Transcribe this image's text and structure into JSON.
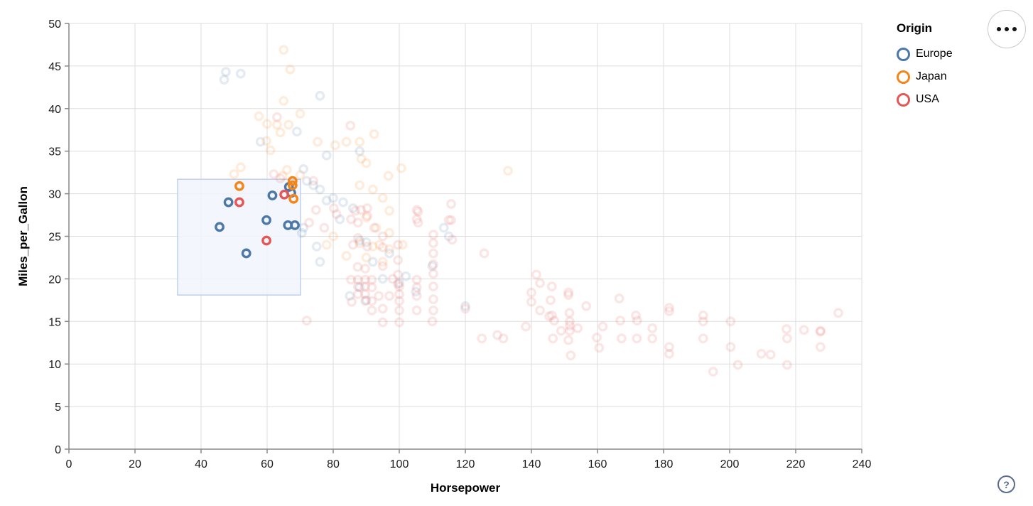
{
  "legend": {
    "title": "Origin",
    "items": [
      {
        "label": "Europe",
        "color": "#4c78a8"
      },
      {
        "label": "Japan",
        "color": "#f58518"
      },
      {
        "label": "USA",
        "color": "#e45756"
      }
    ]
  },
  "menu": {
    "name": "chart actions menu"
  },
  "help": {
    "glyph": "?"
  },
  "chart_data": {
    "type": "scatter",
    "title": "",
    "xlabel": "Horsepower",
    "ylabel": "Miles_per_Gallon",
    "xlim": [
      0,
      240
    ],
    "ylim": [
      0,
      50
    ],
    "xticks": [
      0,
      20,
      40,
      60,
      80,
      100,
      120,
      140,
      160,
      180,
      200,
      220,
      240
    ],
    "yticks": [
      0,
      5,
      10,
      15,
      20,
      25,
      30,
      35,
      40,
      45,
      50
    ],
    "grid": true,
    "legend_position": "top-right",
    "colors": {
      "grid": "#dddddd",
      "axis": "#888888",
      "label": "#1a1a1a",
      "brush_fill": "#f1f5fc",
      "brush_stroke": "#bfd0ec"
    },
    "point_style": {
      "radius": 5.2,
      "stroke_width": 3.4,
      "faded_opacity": 0.15
    },
    "brush": {
      "x": [
        32.9,
        70.1
      ],
      "y": [
        18.1,
        31.7
      ]
    },
    "series": [
      {
        "name": "Europe",
        "color": "#4c78a8",
        "selected": [
          [
            45.6,
            26.1
          ],
          [
            48.3,
            29.0
          ],
          [
            53.7,
            23.0
          ],
          [
            59.8,
            26.9
          ],
          [
            61.6,
            29.8
          ],
          [
            66.6,
            30.8
          ],
          [
            67.3,
            30.1
          ],
          [
            66.3,
            26.3
          ],
          [
            68.4,
            26.3
          ]
        ],
        "points": [
          [
            47.5,
            44.3
          ],
          [
            47,
            43.4
          ],
          [
            52,
            44.1
          ],
          [
            76,
            41.5
          ],
          [
            69,
            37.3
          ],
          [
            58,
            36.1
          ],
          [
            78,
            34.5
          ],
          [
            88,
            35
          ],
          [
            71,
            32.9
          ],
          [
            72,
            31.5
          ],
          [
            74,
            31
          ],
          [
            76,
            30.5
          ],
          [
            78,
            29.2
          ],
          [
            80,
            29.5
          ],
          [
            83,
            29
          ],
          [
            86,
            28.3
          ],
          [
            82,
            27
          ],
          [
            71,
            26
          ],
          [
            70.5,
            25.4
          ],
          [
            75,
            23.8
          ],
          [
            76,
            22
          ],
          [
            113.5,
            26
          ],
          [
            115,
            25
          ],
          [
            88,
            24.5
          ],
          [
            90,
            24.3
          ],
          [
            97,
            23
          ],
          [
            92,
            22
          ],
          [
            102,
            20.3
          ],
          [
            95,
            20
          ],
          [
            100,
            19.5
          ],
          [
            88,
            19
          ],
          [
            110,
            21.5
          ],
          [
            105,
            18.5
          ],
          [
            85,
            18
          ],
          [
            90,
            17.5
          ],
          [
            120,
            16.8
          ]
        ]
      },
      {
        "name": "Japan",
        "color": "#f58518",
        "selected": [
          [
            51.6,
            30.9
          ],
          [
            67.7,
            31.5
          ],
          [
            67.7,
            31.0
          ],
          [
            68.0,
            29.4
          ]
        ],
        "points": [
          [
            65,
            46.9
          ],
          [
            67,
            44.6
          ],
          [
            65,
            40.9
          ],
          [
            70,
            39.4
          ],
          [
            57.5,
            39.1
          ],
          [
            60,
            38.2
          ],
          [
            63,
            38.1
          ],
          [
            66.5,
            38.1
          ],
          [
            64,
            37.2
          ],
          [
            59.8,
            36.2
          ],
          [
            61,
            35.1
          ],
          [
            75.3,
            36.1
          ],
          [
            80.6,
            35.7
          ],
          [
            84,
            36.1
          ],
          [
            88,
            36.1
          ],
          [
            92.4,
            37
          ],
          [
            88.5,
            34.1
          ],
          [
            90,
            33.6
          ],
          [
            96.7,
            32.1
          ],
          [
            100.6,
            33
          ],
          [
            132.9,
            32.7
          ],
          [
            50,
            32.3
          ],
          [
            52,
            33.1
          ],
          [
            64.7,
            32.1
          ],
          [
            66,
            32.8
          ],
          [
            70,
            32.2
          ],
          [
            88,
            31
          ],
          [
            92,
            30.5
          ],
          [
            95,
            29.5
          ],
          [
            97,
            28
          ],
          [
            90,
            27.2
          ],
          [
            93,
            26
          ],
          [
            97,
            25.4
          ],
          [
            88,
            24.2
          ],
          [
            92,
            23.8
          ],
          [
            94,
            24
          ],
          [
            97,
            23.5
          ],
          [
            90,
            22.5
          ],
          [
            95,
            22
          ],
          [
            101,
            24
          ],
          [
            80,
            25
          ],
          [
            84,
            22.7
          ],
          [
            78,
            24
          ]
        ]
      },
      {
        "name": "USA",
        "color": "#e45756",
        "selected": [
          [
            51.6,
            29.0
          ],
          [
            59.8,
            24.5
          ],
          [
            65.2,
            29.9
          ]
        ],
        "points": [
          [
            63,
            39
          ],
          [
            85.2,
            38
          ],
          [
            62,
            32.3
          ],
          [
            64,
            31.8
          ],
          [
            74,
            31.5
          ],
          [
            74.8,
            28.1
          ],
          [
            72.7,
            26.6
          ],
          [
            77.3,
            26
          ],
          [
            80.2,
            28.3
          ],
          [
            81,
            27.6
          ],
          [
            86.7,
            28
          ],
          [
            88.4,
            28.1
          ],
          [
            90.3,
            28.3
          ],
          [
            90.3,
            27.4
          ],
          [
            85.4,
            27
          ],
          [
            87.5,
            26.6
          ],
          [
            92.4,
            26
          ],
          [
            87.5,
            24.8
          ],
          [
            86,
            24
          ],
          [
            90.3,
            23.8
          ],
          [
            87.4,
            21.4
          ],
          [
            89.7,
            21.2
          ],
          [
            85.4,
            19.9
          ],
          [
            87.5,
            19.9
          ],
          [
            89.7,
            19.9
          ],
          [
            91.7,
            19.9
          ],
          [
            87.5,
            19.1
          ],
          [
            89.7,
            19.1
          ],
          [
            87.5,
            18.2
          ],
          [
            89.7,
            18.2
          ],
          [
            91.7,
            19
          ],
          [
            85.6,
            17.3
          ],
          [
            89.7,
            17.4
          ],
          [
            91.7,
            17.4
          ],
          [
            93.8,
            18
          ],
          [
            91.7,
            16.3
          ],
          [
            72,
            15.1
          ],
          [
            95,
            25
          ],
          [
            95,
            23.7
          ],
          [
            95,
            21.5
          ],
          [
            95,
            16.5
          ],
          [
            95,
            14.9
          ],
          [
            97,
            18
          ],
          [
            98,
            20
          ],
          [
            116,
            24.6
          ],
          [
            100,
            19.1
          ],
          [
            100,
            18.2
          ],
          [
            100,
            17.4
          ],
          [
            100,
            16.3
          ],
          [
            100,
            14.9
          ],
          [
            105.3,
            19.9
          ],
          [
            105.3,
            19
          ],
          [
            105.3,
            18
          ],
          [
            105.3,
            16.3
          ],
          [
            105.3,
            28.1
          ],
          [
            105.3,
            27
          ],
          [
            110.3,
            25.2
          ],
          [
            110.3,
            24.2
          ],
          [
            110.3,
            23
          ],
          [
            110.3,
            21.7
          ],
          [
            110.3,
            20.6
          ],
          [
            110.3,
            19.1
          ],
          [
            110.3,
            17.6
          ],
          [
            110.3,
            16.3
          ],
          [
            110,
            15
          ],
          [
            115,
            26.9
          ],
          [
            105.7,
            27.9
          ],
          [
            115.7,
            28.8
          ],
          [
            115.7,
            26.9
          ],
          [
            105.7,
            26.6
          ],
          [
            125.7,
            23
          ],
          [
            99.6,
            24
          ],
          [
            99.6,
            22.2
          ],
          [
            99.6,
            20.5
          ],
          [
            99.6,
            19.4
          ],
          [
            129.7,
            13.4
          ],
          [
            131.5,
            13
          ],
          [
            125,
            13
          ],
          [
            138.3,
            14.4
          ],
          [
            141.5,
            20.5
          ],
          [
            142.6,
            19.5
          ],
          [
            140,
            18.4
          ],
          [
            140,
            17.3
          ],
          [
            142.6,
            16.3
          ],
          [
            145.4,
            15.6
          ],
          [
            120,
            16.5
          ],
          [
            146.2,
            19.1
          ],
          [
            145.8,
            17.5
          ],
          [
            151.2,
            18.4
          ],
          [
            151.2,
            18.1
          ],
          [
            156.6,
            16.8
          ],
          [
            146.2,
            15.7
          ],
          [
            146.9,
            15.1
          ],
          [
            151.5,
            16
          ],
          [
            151.6,
            15
          ],
          [
            151.6,
            14.5
          ],
          [
            151.6,
            13.9
          ],
          [
            154,
            14.2
          ],
          [
            149,
            13.9
          ],
          [
            146.5,
            13
          ],
          [
            151.2,
            12.8
          ],
          [
            159.8,
            13.1
          ],
          [
            161.6,
            14.4
          ],
          [
            160.5,
            11.9
          ],
          [
            151.9,
            11
          ],
          [
            166.6,
            17.7
          ],
          [
            171.6,
            15.7
          ],
          [
            172,
            15.1
          ],
          [
            166.9,
            15.1
          ],
          [
            167.3,
            13
          ],
          [
            171.9,
            13
          ],
          [
            176.6,
            14.2
          ],
          [
            176.6,
            13
          ],
          [
            181.7,
            16.6
          ],
          [
            181.7,
            16.2
          ],
          [
            181.7,
            12
          ],
          [
            181.7,
            11.2
          ],
          [
            192,
            15.7
          ],
          [
            192,
            15
          ],
          [
            192,
            13
          ],
          [
            195,
            9.1
          ],
          [
            200.3,
            15
          ],
          [
            200.3,
            12
          ],
          [
            202.5,
            9.9
          ],
          [
            209.6,
            11.2
          ],
          [
            212.4,
            11.1
          ],
          [
            217.2,
            14.1
          ],
          [
            217.4,
            13
          ],
          [
            217.4,
            9.9
          ],
          [
            222.5,
            14
          ],
          [
            227.5,
            13.9
          ],
          [
            227.5,
            13.8
          ],
          [
            227.5,
            12
          ],
          [
            232.9,
            16
          ]
        ]
      }
    ]
  }
}
